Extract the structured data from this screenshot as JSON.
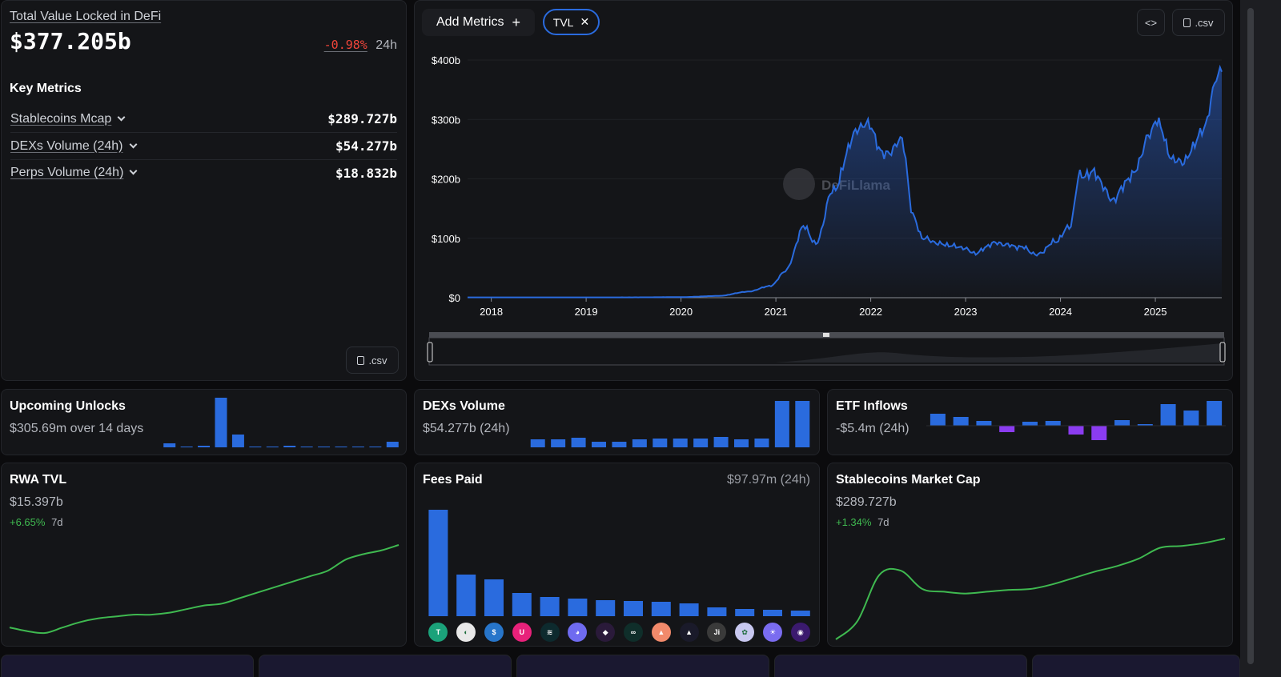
{
  "summary": {
    "title": "Total Value Locked in DeFi",
    "value": "$377.205b",
    "change": "-0.98%",
    "period": "24h",
    "key_metrics_heading": "Key Metrics",
    "metrics": [
      {
        "label": "Stablecoins Mcap",
        "value": "$289.727b"
      },
      {
        "label": "DEXs Volume (24h)",
        "value": "$54.277b"
      },
      {
        "label": "Perps Volume (24h)",
        "value": "$18.832b"
      }
    ],
    "csv_label": ".csv"
  },
  "main_chart": {
    "add_metrics_label": "Add Metrics",
    "active_metric": "TVL",
    "csv_label": ".csv",
    "watermark": "DeFiLlama",
    "y_ticks": [
      "$400b",
      "$300b",
      "$200b",
      "$100b",
      "$0"
    ],
    "x_ticks": [
      "2018",
      "2019",
      "2020",
      "2021",
      "2022",
      "2023",
      "2024",
      "2025"
    ]
  },
  "cards": {
    "unlocks": {
      "title": "Upcoming Unlocks",
      "subtitle": "$305.69m over 14 days"
    },
    "dexs": {
      "title": "DEXs Volume",
      "subtitle": "$54.277b (24h)"
    },
    "etf": {
      "title": "ETF Inflows",
      "subtitle": "-$5.4m (24h)"
    },
    "rwa": {
      "title": "RWA TVL",
      "value": "$15.397b",
      "change": "+6.65%",
      "period": "7d"
    },
    "fees": {
      "title": "Fees Paid",
      "value": "$97.97m (24h)"
    },
    "stables": {
      "title": "Stablecoins Market Cap",
      "value": "$289.727b",
      "change": "+1.34%",
      "period": "7d"
    }
  },
  "chart_data": [
    {
      "type": "area",
      "title": "TVL",
      "x": [
        2017.75,
        2018.5,
        2019.5,
        2020.0,
        2020.4,
        2020.7,
        2020.95,
        2021.1,
        2021.3,
        2021.42,
        2021.6,
        2021.85,
        2021.95,
        2022.15,
        2022.33,
        2022.45,
        2022.55,
        2022.75,
        2022.95,
        2023.1,
        2023.3,
        2023.6,
        2023.75,
        2023.95,
        2024.1,
        2024.2,
        2024.35,
        2024.55,
        2024.75,
        2024.95,
        2025.0,
        2025.2,
        2025.3,
        2025.5,
        2025.65,
        2025.7
      ],
      "y": [
        0.5,
        0.5,
        0.6,
        1,
        3,
        10,
        20,
        45,
        120,
        90,
        180,
        280,
        295,
        240,
        265,
        135,
        100,
        90,
        85,
        75,
        92,
        85,
        72,
        95,
        120,
        205,
        210,
        165,
        205,
        275,
        300,
        230,
        230,
        280,
        368,
        388
      ],
      "ylim": [
        0,
        400
      ],
      "xlabel": "",
      "ylabel": ""
    },
    {
      "type": "bar",
      "title": "Upcoming Unlocks",
      "values": [
        5,
        1,
        2,
        62,
        16,
        1,
        1,
        2,
        1,
        1,
        1,
        1,
        1,
        7
      ]
    },
    {
      "type": "bar",
      "title": "DEXs Volume",
      "values": [
        10,
        10,
        12,
        7,
        7,
        10,
        11,
        11,
        11,
        13,
        10,
        11,
        58,
        58
      ]
    },
    {
      "type": "bar",
      "title": "ETF Inflows",
      "values": [
        15,
        11,
        6,
        -8,
        5,
        6,
        -11,
        -18,
        7,
        2,
        27,
        19,
        31
      ]
    },
    {
      "type": "line",
      "title": "RWA TVL",
      "values": [
        3,
        1,
        0,
        3,
        6,
        8,
        9,
        10,
        10,
        11,
        13,
        15,
        16,
        19,
        22,
        25,
        28,
        31,
        34,
        40,
        43,
        45,
        48
      ]
    },
    {
      "type": "bar",
      "title": "Fees Paid",
      "values": [
        133,
        52,
        46,
        29,
        24,
        22,
        20,
        19,
        18,
        16,
        11,
        9,
        8,
        7
      ]
    },
    {
      "type": "line",
      "title": "Stablecoins Market Cap",
      "values": [
        0,
        20,
        70,
        75,
        55,
        52,
        50,
        52,
        54,
        55,
        60,
        67,
        74,
        80,
        88,
        100,
        102,
        105,
        110
      ]
    }
  ],
  "fees_icons": [
    "tether-icon",
    "circle-icon",
    "usdc-icon",
    "uniswap-icon",
    "lido-icon",
    "aave-icon",
    "pump-icon",
    "hyperliquid-icon",
    "ethena-icon",
    "raydium-icon",
    "jito-icon",
    "meteora-icon",
    "jupiter-icon",
    "phantom-icon"
  ],
  "colors": {
    "accent": "#2a6bde",
    "green": "#3fb950",
    "red": "#f0453a",
    "purple": "#8b3cf0"
  }
}
